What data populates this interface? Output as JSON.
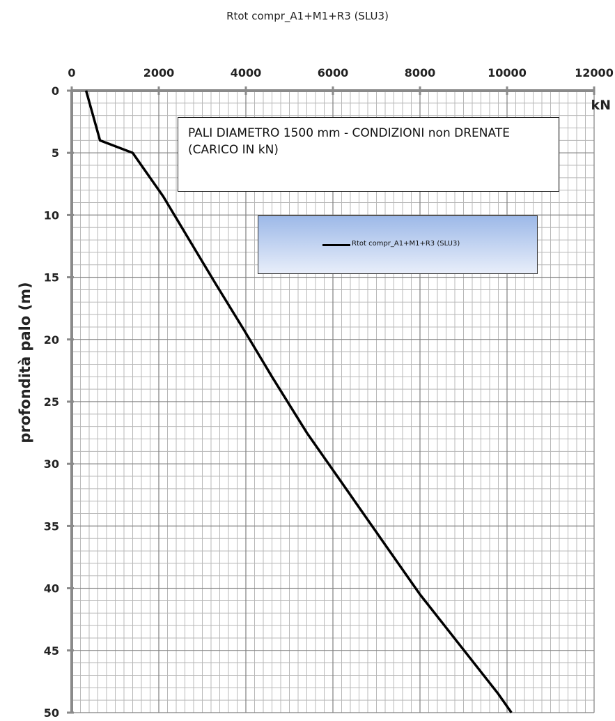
{
  "chart_data": {
    "type": "line",
    "title": "Rtot compr_A1+M1+R3 (SLU3)",
    "xlabel": "kN",
    "ylabel": "profondità palo (m)",
    "xlim": [
      0,
      12000
    ],
    "ylim": [
      0,
      50
    ],
    "y_inverted": true,
    "x_axis_position": "top",
    "x_ticks": [
      0,
      2000,
      4000,
      6000,
      8000,
      10000,
      12000
    ],
    "y_ticks": [
      0,
      5,
      10,
      15,
      20,
      25,
      30,
      35,
      40,
      45,
      50
    ],
    "grid": true,
    "legend_position": "center-right",
    "annotation": "PALI  DIAMETRO 1500 mm - CONDIZIONI non DRENATE (CARICO IN kN)",
    "series": [
      {
        "name": "Rtot compr_A1+M1+R3 (SLU3)",
        "color": "#000000",
        "points": [
          [
            330,
            0
          ],
          [
            410,
            1
          ],
          [
            650,
            4
          ],
          [
            1400,
            5
          ],
          [
            1800,
            7
          ],
          [
            2100,
            8.5
          ],
          [
            2700,
            12
          ],
          [
            3300,
            15.5
          ],
          [
            3950,
            19.2
          ],
          [
            4600,
            23
          ],
          [
            5400,
            27.5
          ],
          [
            6300,
            32
          ],
          [
            7200,
            36.5
          ],
          [
            8000,
            40.5
          ],
          [
            8900,
            44.5
          ],
          [
            9800,
            48.5
          ],
          [
            10100,
            50
          ]
        ]
      }
    ]
  }
}
